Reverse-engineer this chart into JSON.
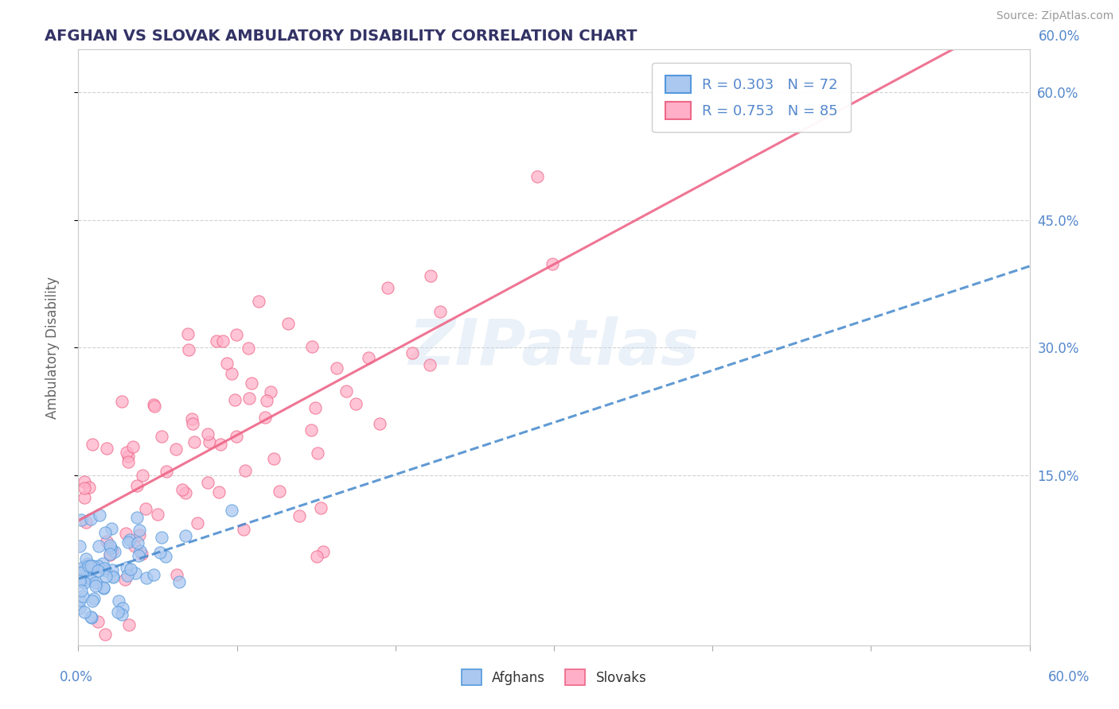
{
  "title": "AFGHAN VS SLOVAK AMBULATORY DISABILITY CORRELATION CHART",
  "source": "Source: ZipAtlas.com",
  "ylabel": "Ambulatory Disability",
  "yticks_labels": [
    "15.0%",
    "30.0%",
    "45.0%",
    "60.0%"
  ],
  "ytick_vals": [
    0.15,
    0.3,
    0.45,
    0.6
  ],
  "xlim": [
    0.0,
    0.6
  ],
  "ylim": [
    -0.05,
    0.65
  ],
  "afghan_color": "#aac8f0",
  "afghan_edge": "#5599dd",
  "slovak_color": "#ffb0c8",
  "slovak_edge": "#ee6688",
  "afghan_line_color": "#4488cc",
  "slovak_line_color": "#ee6688",
  "legend_R_afghan": "R = 0.303",
  "legend_N_afghan": "N = 72",
  "legend_R_slovak": "R = 0.753",
  "legend_N_slovak": "N = 85",
  "watermark": "ZIPatlas",
  "background_color": "#ffffff",
  "grid_color": "#cccccc",
  "title_color": "#333366",
  "axis_label_color": "#5588cc",
  "afghan_seed": 10,
  "slovak_seed": 20
}
